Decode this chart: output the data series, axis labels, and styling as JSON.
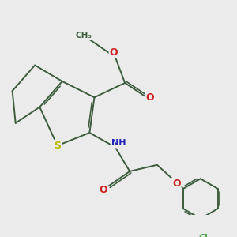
{
  "background_color": "#ebebeb",
  "bond_color": "#3d5c3d",
  "atom_colors": {
    "S": "#b8b800",
    "N": "#2222bb",
    "O": "#cc2222",
    "Cl": "#44aa44",
    "C": "#3d5c3d",
    "H": "#888888"
  },
  "bond_width": 1.4,
  "dbo": 0.055
}
